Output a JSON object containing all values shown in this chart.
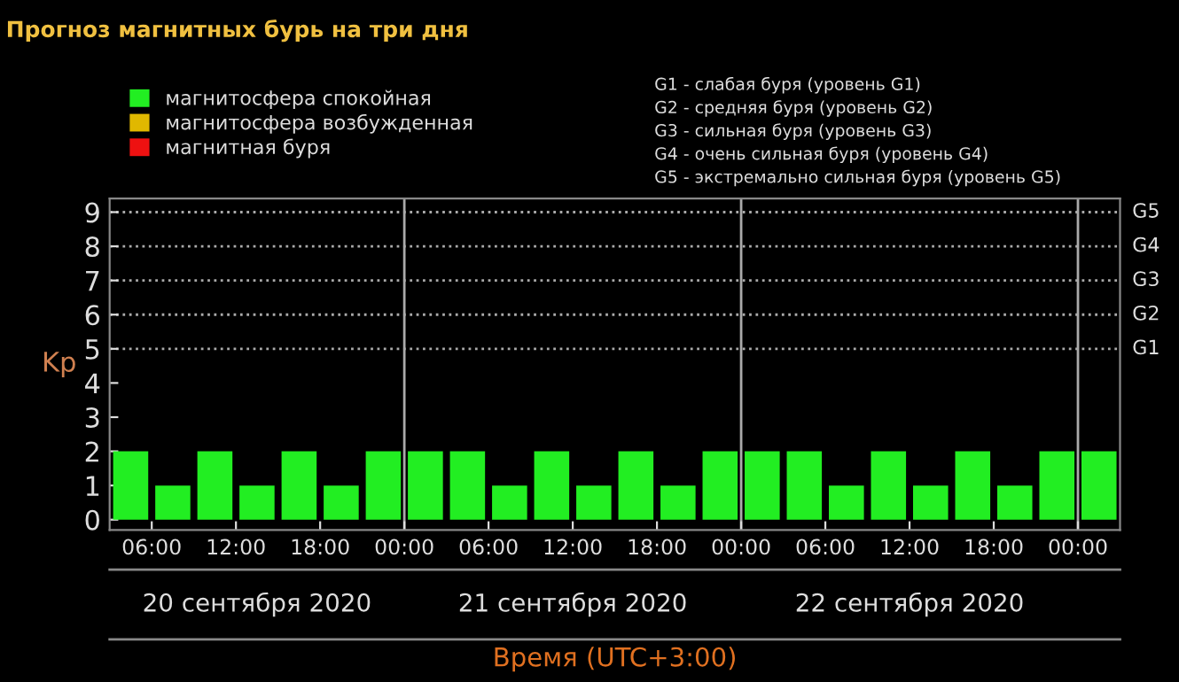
{
  "chart_data": {
    "type": "bar",
    "title": "Прогноз магнитных бурь на три дня",
    "xlabel": "Время (UTC+3:00)",
    "ylabel": "Kp",
    "x": [
      "2020-09-20T04:30",
      "2020-09-20T07:30",
      "2020-09-20T10:30",
      "2020-09-20T13:30",
      "2020-09-20T16:30",
      "2020-09-20T19:30",
      "2020-09-20T22:30",
      "2020-09-21T01:30",
      "2020-09-21T04:30",
      "2020-09-21T07:30",
      "2020-09-21T10:30",
      "2020-09-21T13:30",
      "2020-09-21T16:30",
      "2020-09-21T19:30",
      "2020-09-21T22:30",
      "2020-09-22T01:30",
      "2020-09-22T04:30",
      "2020-09-22T07:30",
      "2020-09-22T10:30",
      "2020-09-22T13:30",
      "2020-09-22T16:30",
      "2020-09-22T19:30",
      "2020-09-22T22:30",
      "2020-09-23T01:30"
    ],
    "series": [
      {
        "name": "магнитосфера спокойная",
        "color": "#22ee22",
        "values": [
          2,
          1,
          2,
          1,
          2,
          1,
          2,
          2,
          2,
          1,
          2,
          1,
          2,
          1,
          2,
          2,
          2,
          1,
          2,
          1,
          2,
          1,
          2,
          2
        ]
      },
      {
        "name": "магнитосфера возбужденная",
        "color": "#e0b800",
        "values": [
          null,
          null,
          null,
          null,
          null,
          null,
          null,
          null,
          null,
          null,
          null,
          null,
          null,
          null,
          null,
          null,
          null,
          null,
          null,
          null,
          null,
          null,
          null,
          null
        ]
      },
      {
        "name": "магнитная буря",
        "color": "#ee1111",
        "values": [
          null,
          null,
          null,
          null,
          null,
          null,
          null,
          null,
          null,
          null,
          null,
          null,
          null,
          null,
          null,
          null,
          null,
          null,
          null,
          null,
          null,
          null,
          null,
          null
        ]
      }
    ],
    "xlim": [
      "2020-09-20T03:00",
      "2020-09-23T03:00"
    ],
    "xticks": [
      {
        "value": "2020-09-20T06:00",
        "label": "06:00"
      },
      {
        "value": "2020-09-20T12:00",
        "label": "12:00"
      },
      {
        "value": "2020-09-20T18:00",
        "label": "18:00"
      },
      {
        "value": "2020-09-21T00:00",
        "label": "00:00"
      },
      {
        "value": "2020-09-21T06:00",
        "label": "06:00"
      },
      {
        "value": "2020-09-21T12:00",
        "label": "12:00"
      },
      {
        "value": "2020-09-21T18:00",
        "label": "18:00"
      },
      {
        "value": "2020-09-22T00:00",
        "label": "00:00"
      },
      {
        "value": "2020-09-22T06:00",
        "label": "06:00"
      },
      {
        "value": "2020-09-22T12:00",
        "label": "12:00"
      },
      {
        "value": "2020-09-22T18:00",
        "label": "18:00"
      },
      {
        "value": "2020-09-23T00:00",
        "label": "00:00"
      }
    ],
    "ylim": [
      -0.3,
      9.4
    ],
    "yticks": [
      0,
      1,
      2,
      3,
      4,
      5,
      6,
      7,
      8,
      9
    ],
    "ref_lines": [
      {
        "axis": "x",
        "value": "2020-09-21T00:00",
        "color": "#aaaaaa",
        "line_style": "solid"
      },
      {
        "axis": "x",
        "value": "2020-09-22T00:00",
        "color": "#aaaaaa",
        "line_style": "solid"
      },
      {
        "axis": "x",
        "value": "2020-09-23T00:00",
        "color": "#aaaaaa",
        "line_style": "solid"
      },
      {
        "axis": "y",
        "value": 5,
        "label": "G1",
        "color": "#aaaaaa",
        "line_style": "dotted"
      },
      {
        "axis": "y",
        "value": 6,
        "label": "G2",
        "color": "#aaaaaa",
        "line_style": "dotted"
      },
      {
        "axis": "y",
        "value": 7,
        "label": "G3",
        "color": "#aaaaaa",
        "line_style": "dotted"
      },
      {
        "axis": "y",
        "value": 8,
        "label": "G4",
        "color": "#aaaaaa",
        "line_style": "dotted"
      },
      {
        "axis": "y",
        "value": 9,
        "label": "G5",
        "color": "#aaaaaa",
        "line_style": "dotted"
      }
    ],
    "annotations": [
      "20 сентября 2020",
      "21 сентября 2020",
      "22 сентября 2020",
      "G1 - слабая буря (уровень G1)",
      "G2 - средняя буря (уровень G2)",
      "G3 - сильная буря (уровень G3)",
      "G4 - очень сильная буря (уровень G4)",
      "G5 - экстремально сильная буря (уровень G5)"
    ],
    "legend": "top left",
    "grid": false
  }
}
